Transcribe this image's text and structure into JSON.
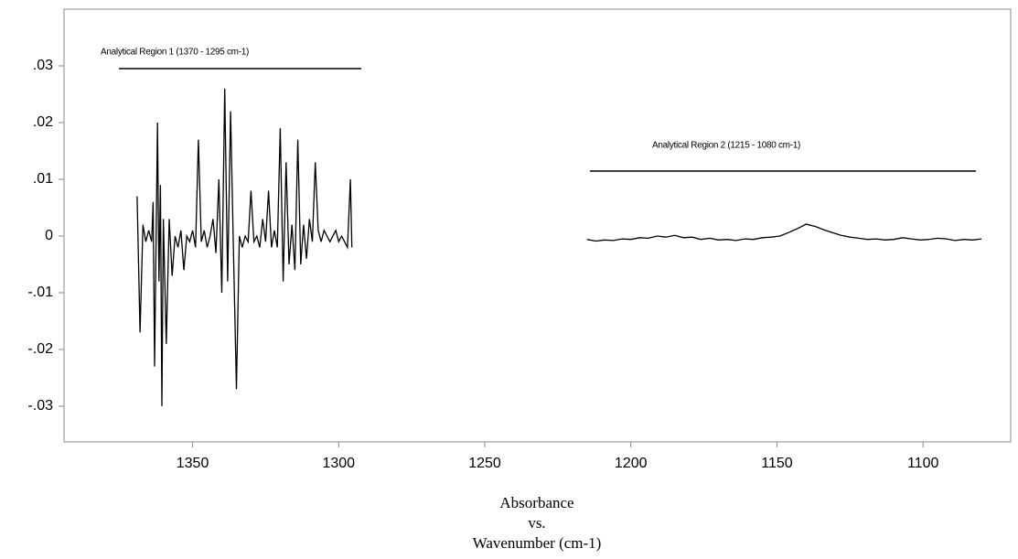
{
  "chart_data": {
    "type": "line",
    "annotations": [
      "Analytical Region 1 (1370 - 1295 cm-1)",
      "Analytical Region 2  (1215 - 1080 cm-1)"
    ],
    "x_label": [
      "Absorbance",
      "vs.",
      "Wavenumber (cm-1)"
    ],
    "xlim": [
      1394,
      1070
    ],
    "xticks": [
      1350,
      1300,
      1250,
      1200,
      1150,
      1100
    ],
    "ylim": [
      -0.0363,
      0.04
    ],
    "yticks": [
      {
        "value": 0.03,
        "label": ".03"
      },
      {
        "value": 0.02,
        "label": ".02"
      },
      {
        "value": 0.01,
        "label": ".01"
      },
      0,
      {
        "value": -0.01,
        "label": "-.01"
      },
      {
        "value": -0.02,
        "label": "-.02"
      },
      {
        "value": -0.03,
        "label": "-.03"
      }
    ],
    "series": [
      {
        "color": "#000000",
        "x": [
          1369,
          1368,
          1367,
          1366,
          1365,
          1364,
          1363.5,
          1363,
          1362,
          1361.5,
          1361,
          1360.5,
          1360,
          1359,
          1358,
          1357,
          1356,
          1355,
          1354,
          1353,
          1352,
          1351,
          1350,
          1349,
          1348,
          1347,
          1346,
          1345,
          1344,
          1343,
          1342,
          1341,
          1340,
          1339,
          1338,
          1337,
          1336,
          1335,
          1334,
          1333,
          1332,
          1331,
          1330,
          1329,
          1328,
          1327,
          1326,
          1325,
          1324,
          1323,
          1322,
          1321,
          1320,
          1319,
          1318,
          1317,
          1316,
          1315,
          1314,
          1313,
          1312,
          1311,
          1310,
          1309,
          1308,
          1307,
          1306,
          1305,
          1304,
          1303,
          1302,
          1301,
          1300,
          1299,
          1298,
          1297,
          1296,
          1295.5
        ],
        "values": [
          0.007,
          -0.017,
          0.002,
          -0.001,
          0.001,
          -0.001,
          0.006,
          -0.023,
          0.02,
          -0.008,
          0.009,
          -0.03,
          0.003,
          -0.019,
          0.003,
          -0.007,
          0,
          -0.002,
          0.001,
          -0.006,
          0,
          -0.001,
          0.001,
          -0.002,
          0.017,
          -0.001,
          0.001,
          -0.002,
          0,
          0.003,
          -0.003,
          0.01,
          -0.01,
          0.026,
          -0.008,
          0.022,
          -0.003,
          -0.027,
          0,
          -0.002,
          0,
          -0.001,
          0.008,
          -0.001,
          0,
          -0.002,
          0.003,
          -0.001,
          0.008,
          -0.002,
          0.001,
          -0.002,
          0.019,
          -0.008,
          0.013,
          -0.005,
          0.002,
          -0.006,
          0.017,
          -0.005,
          0.002,
          -0.004,
          0.003,
          -0.001,
          0.013,
          0.001,
          -0.001,
          0.001,
          0,
          -0.001,
          0,
          0.001,
          -0.001,
          0,
          -0.001,
          -0.002,
          0.01,
          -0.002
        ]
      },
      {
        "color": "#000000",
        "x": [
          1215,
          1212,
          1209,
          1206,
          1203,
          1200,
          1197,
          1194,
          1191,
          1188,
          1185,
          1182,
          1179,
          1176,
          1173,
          1170,
          1167,
          1164,
          1161,
          1158,
          1155,
          1152,
          1149,
          1146,
          1143,
          1140,
          1137,
          1134,
          1131,
          1128,
          1125,
          1122,
          1119,
          1116,
          1113,
          1110,
          1107,
          1104,
          1101,
          1098,
          1095,
          1092,
          1089,
          1086,
          1083,
          1080
        ],
        "values": [
          -0.0006,
          -0.0009,
          -0.0007,
          -0.0008,
          -0.0005,
          -0.0006,
          -0.0003,
          -0.0004,
          0,
          -0.0002,
          0.0001,
          -0.0003,
          -0.0002,
          -0.0006,
          -0.0004,
          -0.0007,
          -0.0006,
          -0.0008,
          -0.0005,
          -0.0006,
          -0.0003,
          -0.0002,
          0,
          0.0006,
          0.0013,
          0.0021,
          0.0017,
          0.0011,
          0.0006,
          0.0001,
          -0.0002,
          -0.0004,
          -0.0006,
          -0.0005,
          -0.0007,
          -0.0006,
          -0.0003,
          -0.0005,
          -0.0007,
          -0.0006,
          -0.0004,
          -0.0005,
          -0.0008,
          -0.0006,
          -0.0007,
          -0.0005
        ]
      }
    ]
  }
}
